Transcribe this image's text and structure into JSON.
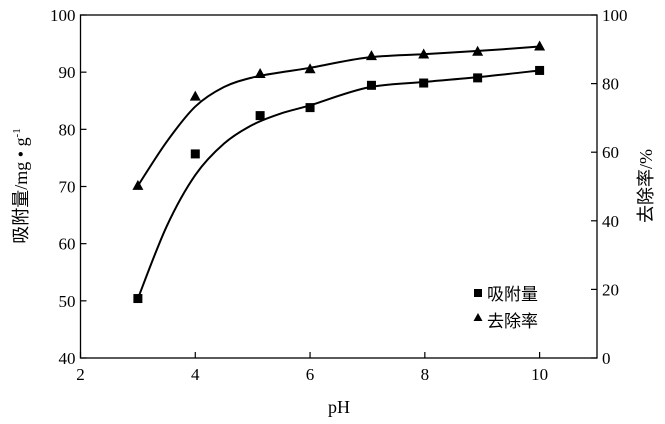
{
  "chart_data": {
    "type": "scatter",
    "title": "",
    "xlabel": "pH",
    "ylabel_left": "吸附量/mg • g",
    "ylabel_left_superscript": "-1",
    "ylabel_right": "去除率/%",
    "xlim": [
      2,
      11
    ],
    "ylim_left": [
      40,
      100
    ],
    "ylim_right": [
      0,
      100
    ],
    "x_ticks": [
      "2",
      "4",
      "6",
      "8",
      "10"
    ],
    "y_left_ticks": [
      "40",
      "50",
      "60",
      "70",
      "80",
      "90",
      "100"
    ],
    "y_right_ticks": [
      "0",
      "20",
      "40",
      "60",
      "80",
      "100"
    ],
    "grid": false,
    "legend_position": "bottom-right",
    "series": [
      {
        "name": "吸附量",
        "marker": "square",
        "axis": "left",
        "x": [
          3,
          4,
          5.13,
          6,
          7.07,
          7.98,
          8.92,
          10
        ],
        "y": [
          50.4,
          75.7,
          82.4,
          83.8,
          87.7,
          88.1,
          89.0,
          90.3
        ],
        "fit_x": [
          3,
          3.5,
          4,
          4.5,
          5,
          5.5,
          6,
          7,
          8,
          9,
          10
        ],
        "fit_y": [
          50.4,
          63,
          72,
          77.5,
          80.8,
          82.8,
          84.2,
          87.3,
          88.3,
          89.2,
          90.3
        ]
      },
      {
        "name": "去除率",
        "marker": "triangle",
        "axis": "right",
        "x": [
          3,
          4,
          5.13,
          6,
          7.07,
          7.98,
          8.92,
          10
        ],
        "y": [
          50.2,
          76.2,
          82.8,
          84.2,
          88.0,
          88.5,
          89.3,
          90.8
        ],
        "fit_x": [
          3,
          3.5,
          4,
          4.5,
          5,
          5.5,
          6,
          7,
          8,
          9,
          10
        ],
        "fit_y": [
          50.2,
          63,
          73.3,
          79,
          81.8,
          83.3,
          84.6,
          87.6,
          88.6,
          89.6,
          90.8
        ]
      }
    ]
  }
}
